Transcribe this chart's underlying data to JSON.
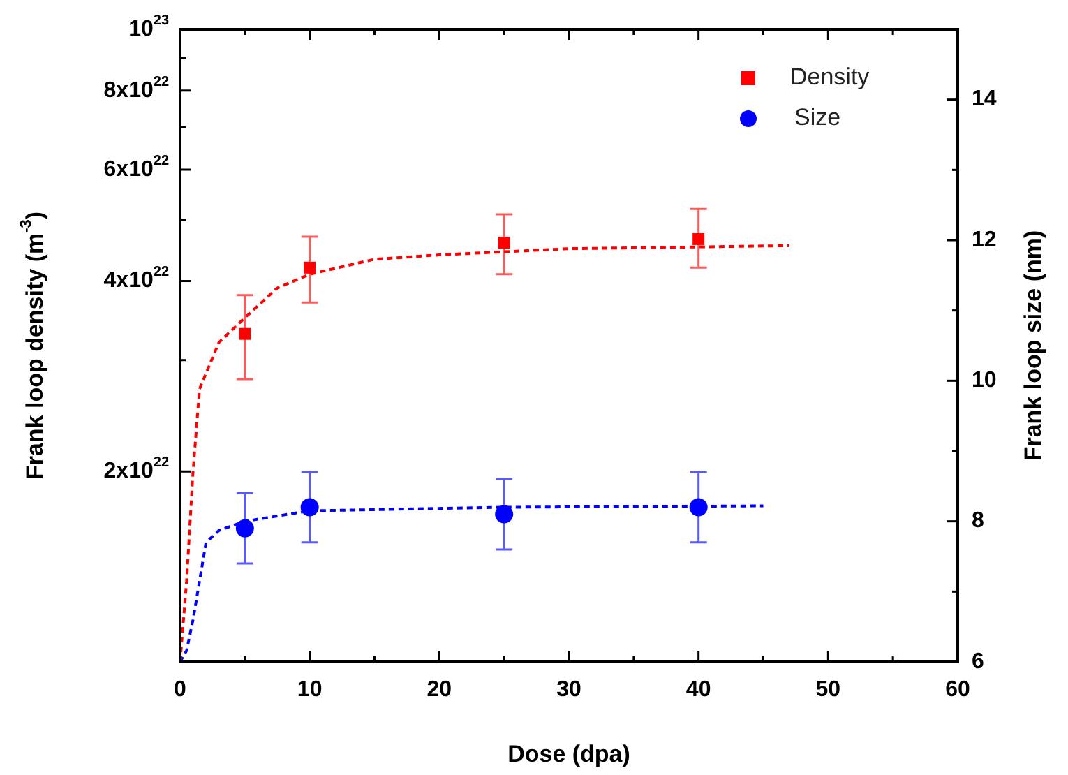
{
  "chart_data": {
    "type": "scatter",
    "xlabel": "Dose (dpa)",
    "ylabel": "Frank loop density (m$^{-3}$)",
    "y2label": "Frank loop size (nm)",
    "log": "y",
    "legend": "top right",
    "xlim": [
      0,
      60
    ],
    "xticks": [
      0,
      {
        "value": 5,
        "label": null
      },
      10,
      {
        "value": 15,
        "label": null
      },
      20,
      {
        "value": 25,
        "label": null
      },
      30,
      {
        "value": 35,
        "label": null
      },
      40,
      {
        "value": 45,
        "label": null
      },
      50,
      {
        "value": 55,
        "label": null
      },
      60
    ],
    "ylim": [
      1e+22,
      1e+23
    ],
    "yticks": [
      {
        "value": 2e+22,
        "label": "2x10$^{22}$"
      },
      {
        "value": 3e+22,
        "label": null
      },
      {
        "value": 4e+22,
        "label": "4x10$^{22}$"
      },
      {
        "value": 5e+22,
        "label": null
      },
      {
        "value": 6e+22,
        "label": "6x10$^{22}$"
      },
      {
        "value": 7e+22,
        "label": null
      },
      {
        "value": 8e+22,
        "label": "8x10$^{22}$"
      },
      {
        "value": 9e+22,
        "label": null
      },
      {
        "value": 1e+23,
        "label": "10$^{23}$"
      }
    ],
    "y2lim": [
      6,
      15
    ],
    "y2ticks": [
      6,
      {
        "value": 7,
        "label": null
      },
      8,
      {
        "value": 9,
        "label": null
      },
      10,
      {
        "value": 11,
        "label": null
      },
      12,
      {
        "value": 13,
        "label": null
      },
      14
    ],
    "series": [
      {
        "name": "Density",
        "type": "scatter",
        "marker": "square",
        "color": "#ff0000",
        "x": [
          5,
          10,
          25,
          40
        ],
        "values": [
          3.3e+22,
          4.2e+22,
          4.6e+22,
          4.66e+22
        ],
        "errors": [
          [
            2.8e+22,
            3.8e+22
          ],
          [
            3.7e+22,
            4.7e+22
          ],
          [
            4.1e+22,
            5.1e+22
          ],
          [
            4.2e+22,
            5.2e+22
          ]
        ]
      },
      {
        "name": "Size",
        "type": "scatter",
        "marker": "circle",
        "color": "#0000ff",
        "axis": "y2",
        "x": [
          5,
          10,
          25,
          40
        ],
        "values": [
          7.9,
          8.2,
          8.1,
          8.2
        ],
        "errors": [
          [
            7.4,
            8.4
          ],
          [
            7.7,
            8.7
          ],
          [
            7.6,
            8.6
          ],
          [
            7.7,
            8.7
          ]
        ]
      },
      {
        "type": "line",
        "color": "#ff0000",
        "line_style": "dashed",
        "marker": "none",
        "x": [
          0,
          0.5,
          1,
          1.5,
          3,
          5,
          7.5,
          10,
          15,
          20,
          30,
          47
        ],
        "values": [
          1e+22,
          1.34e+22,
          2e+22,
          2.7e+22,
          3.2e+22,
          3.5e+22,
          3.9e+22,
          4.1e+22,
          4.33e+22,
          4.4e+22,
          4.5e+22,
          4.55e+22
        ]
      },
      {
        "type": "line",
        "color": "#0000ff",
        "line_style": "dashed",
        "marker": "none",
        "axis": "y2",
        "x": [
          0,
          0.5,
          1,
          2,
          3,
          5,
          10,
          25,
          45
        ],
        "values": [
          6,
          6.16,
          6.6,
          7.7,
          7.87,
          8.0,
          8.15,
          8.2,
          8.22
        ]
      }
    ]
  }
}
